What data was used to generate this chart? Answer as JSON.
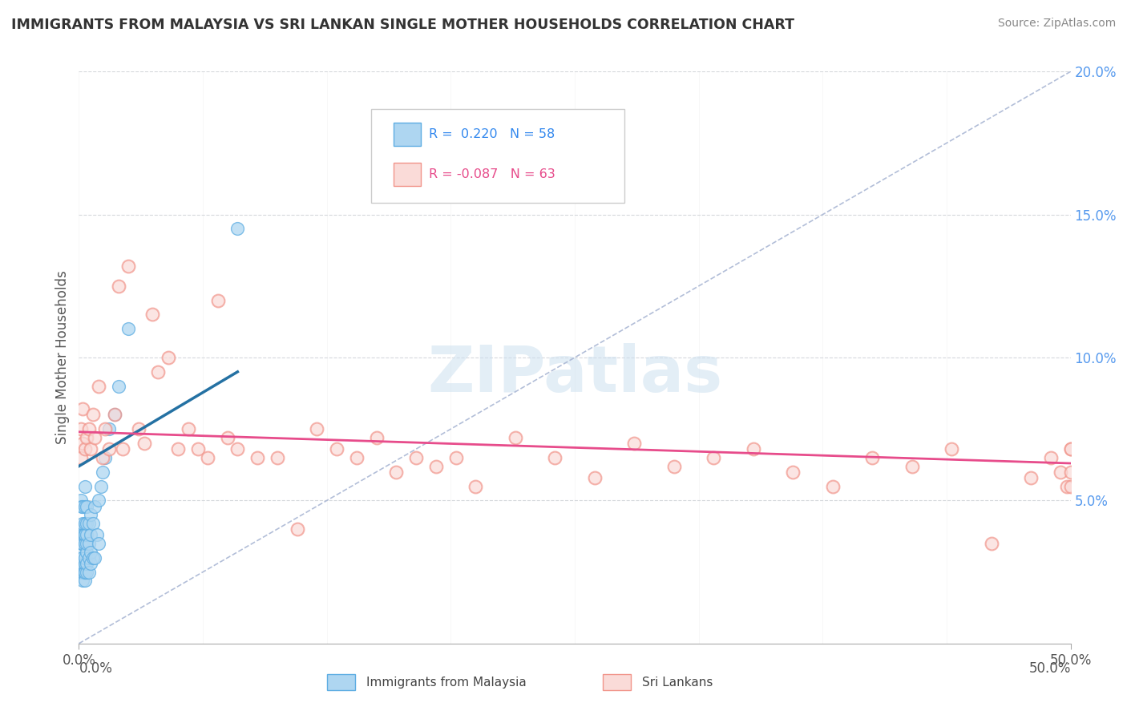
{
  "title": "IMMIGRANTS FROM MALAYSIA VS SRI LANKAN SINGLE MOTHER HOUSEHOLDS CORRELATION CHART",
  "source": "Source: ZipAtlas.com",
  "ylabel_label": "Single Mother Households",
  "xlabel_label_left": "Immigrants from Malaysia",
  "xlabel_label_right": "Sri Lankans",
  "legend_blue_r": "R =  0.220",
  "legend_blue_n": "N = 58",
  "legend_pink_r": "R = -0.087",
  "legend_pink_n": "N = 63",
  "blue_fill_color": "#aed6f1",
  "blue_edge_color": "#5dade2",
  "pink_fill_color": "#fadbd8",
  "pink_edge_color": "#f1948a",
  "blue_line_color": "#2471a3",
  "pink_line_color": "#e74c8b",
  "ref_line_color": "#aab7d4",
  "xlim": [
    0.0,
    0.5
  ],
  "ylim": [
    0.0,
    0.2
  ],
  "blue_scatter_x": [
    0.0005,
    0.0008,
    0.001,
    0.001,
    0.001,
    0.001,
    0.0015,
    0.0015,
    0.0015,
    0.002,
    0.002,
    0.002,
    0.002,
    0.002,
    0.002,
    0.002,
    0.002,
    0.0025,
    0.0025,
    0.003,
    0.003,
    0.003,
    0.003,
    0.003,
    0.003,
    0.003,
    0.003,
    0.003,
    0.004,
    0.004,
    0.004,
    0.004,
    0.004,
    0.004,
    0.004,
    0.005,
    0.005,
    0.005,
    0.005,
    0.006,
    0.006,
    0.006,
    0.006,
    0.007,
    0.007,
    0.008,
    0.008,
    0.009,
    0.01,
    0.01,
    0.011,
    0.012,
    0.013,
    0.015,
    0.018,
    0.02,
    0.025,
    0.08
  ],
  "blue_scatter_y": [
    0.03,
    0.025,
    0.028,
    0.035,
    0.04,
    0.05,
    0.025,
    0.035,
    0.048,
    0.022,
    0.025,
    0.028,
    0.03,
    0.035,
    0.038,
    0.042,
    0.048,
    0.025,
    0.038,
    0.022,
    0.025,
    0.028,
    0.03,
    0.035,
    0.038,
    0.042,
    0.048,
    0.055,
    0.025,
    0.028,
    0.032,
    0.035,
    0.038,
    0.042,
    0.048,
    0.025,
    0.03,
    0.035,
    0.042,
    0.028,
    0.032,
    0.038,
    0.045,
    0.03,
    0.042,
    0.03,
    0.048,
    0.038,
    0.035,
    0.05,
    0.055,
    0.06,
    0.065,
    0.075,
    0.08,
    0.09,
    0.11,
    0.145
  ],
  "pink_scatter_x": [
    0.001,
    0.001,
    0.002,
    0.002,
    0.003,
    0.004,
    0.005,
    0.006,
    0.007,
    0.008,
    0.01,
    0.012,
    0.013,
    0.015,
    0.018,
    0.02,
    0.022,
    0.025,
    0.03,
    0.033,
    0.037,
    0.04,
    0.045,
    0.05,
    0.055,
    0.06,
    0.065,
    0.07,
    0.075,
    0.08,
    0.09,
    0.1,
    0.11,
    0.12,
    0.13,
    0.14,
    0.15,
    0.16,
    0.17,
    0.18,
    0.19,
    0.2,
    0.22,
    0.24,
    0.26,
    0.28,
    0.3,
    0.32,
    0.34,
    0.36,
    0.38,
    0.4,
    0.42,
    0.44,
    0.46,
    0.48,
    0.49,
    0.495,
    0.498,
    0.5,
    0.5,
    0.5,
    0.5
  ],
  "pink_scatter_y": [
    0.065,
    0.075,
    0.07,
    0.082,
    0.068,
    0.072,
    0.075,
    0.068,
    0.08,
    0.072,
    0.09,
    0.065,
    0.075,
    0.068,
    0.08,
    0.125,
    0.068,
    0.132,
    0.075,
    0.07,
    0.115,
    0.095,
    0.1,
    0.068,
    0.075,
    0.068,
    0.065,
    0.12,
    0.072,
    0.068,
    0.065,
    0.065,
    0.04,
    0.075,
    0.068,
    0.065,
    0.072,
    0.06,
    0.065,
    0.062,
    0.065,
    0.055,
    0.072,
    0.065,
    0.058,
    0.07,
    0.062,
    0.065,
    0.068,
    0.06,
    0.055,
    0.065,
    0.062,
    0.068,
    0.035,
    0.058,
    0.065,
    0.06,
    0.055,
    0.068,
    0.055,
    0.06,
    0.068
  ],
  "blue_trend_x": [
    0.0,
    0.08
  ],
  "blue_trend_y": [
    0.062,
    0.095
  ],
  "pink_trend_x": [
    0.0,
    0.5
  ],
  "pink_trend_y": [
    0.074,
    0.063
  ],
  "watermark": "ZIPatlas",
  "background_color": "#ffffff",
  "grid_color": "#d5d8dc"
}
